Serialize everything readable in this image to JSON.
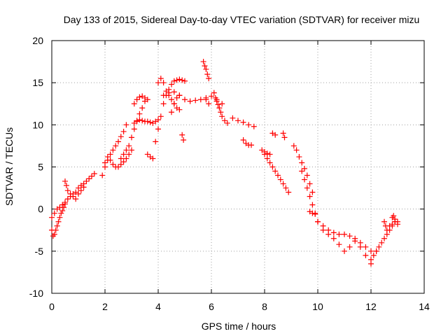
{
  "chart_data": {
    "type": "scatter",
    "title": "Day 133 of 2015, Sidereal Day-to-day VTEC variation (SDTVAR) for receiver mizu",
    "xlabel": "GPS time / hours",
    "ylabel": "SDTVAR / TECUs",
    "xlim": [
      0,
      14
    ],
    "ylim": [
      -10,
      20
    ],
    "xticks": [
      0,
      2,
      4,
      6,
      8,
      10,
      12,
      14
    ],
    "yticks": [
      -10,
      -5,
      0,
      5,
      10,
      15,
      20
    ],
    "xtick_labels": [
      "0",
      "2",
      "4",
      "6",
      "8",
      "10",
      "12",
      "14"
    ],
    "ytick_labels": [
      "-10",
      "-5",
      "0",
      "5",
      "10",
      "15",
      "20"
    ],
    "grid": true,
    "marker": "+",
    "color": "#ff0000",
    "series": [
      {
        "name": "s1",
        "x": [
          0.0,
          0.1,
          0.2,
          0.3,
          0.4,
          0.5,
          0.6,
          0.7,
          0.8,
          0.9,
          1.0,
          1.1,
          1.2,
          1.3,
          1.4,
          1.5,
          1.6
        ],
        "y": [
          -1.0,
          -0.5,
          0.0,
          0.2,
          0.5,
          0.8,
          1.2,
          1.5,
          1.8,
          2.0,
          2.5,
          2.8,
          3.0,
          3.3,
          3.6,
          3.9,
          4.2
        ]
      },
      {
        "name": "s2",
        "x": [
          0.0,
          0.05,
          0.1,
          0.15,
          0.2,
          0.25,
          0.3,
          0.35,
          0.4,
          0.45,
          0.5
        ],
        "y": [
          -2.5,
          -3.2,
          -3.0,
          -2.5,
          -2.0,
          -1.5,
          -1.0,
          -0.5,
          -0.2,
          0.2,
          0.6
        ]
      },
      {
        "name": "s3",
        "x": [
          0.5,
          0.55,
          0.6,
          0.7,
          0.8,
          0.9,
          1.0,
          1.1,
          1.2
        ],
        "y": [
          3.3,
          2.8,
          2.2,
          1.8,
          1.5,
          1.2,
          1.8,
          2.2,
          2.6
        ]
      },
      {
        "name": "s4",
        "x": [
          1.9,
          2.0,
          2.1,
          2.2,
          2.3,
          2.4,
          2.5,
          2.6,
          2.7,
          2.8
        ],
        "y": [
          4.0,
          5.0,
          5.8,
          6.5,
          7.0,
          7.5,
          8.0,
          8.6,
          9.2,
          10.0
        ]
      },
      {
        "name": "s5",
        "x": [
          2.0,
          2.1,
          2.2,
          2.3,
          2.4,
          2.5,
          2.6,
          2.7,
          2.8,
          2.9,
          3.0
        ],
        "y": [
          5.5,
          6.2,
          5.8,
          5.3,
          5.0,
          5.0,
          5.3,
          5.6,
          6.0,
          6.5,
          7.0
        ]
      },
      {
        "name": "s6",
        "x": [
          2.6,
          2.7,
          2.8,
          2.9,
          3.0,
          3.1,
          3.2,
          3.3,
          3.4,
          3.5
        ],
        "y": [
          6.0,
          6.5,
          7.0,
          7.5,
          8.5,
          9.5,
          10.5,
          11.3,
          12.0,
          12.8
        ]
      },
      {
        "name": "s7",
        "x": [
          3.1,
          3.2,
          3.3,
          3.4,
          3.5,
          3.6,
          3.7,
          3.8,
          3.9,
          4.0
        ],
        "y": [
          10.2,
          10.4,
          10.6,
          10.5,
          10.4,
          10.4,
          10.3,
          10.2,
          10.4,
          10.6
        ]
      },
      {
        "name": "s8",
        "x": [
          3.1,
          3.2,
          3.3,
          3.4,
          3.5,
          3.6
        ],
        "y": [
          12.5,
          13.0,
          13.3,
          13.4,
          13.2,
          13.0
        ]
      },
      {
        "name": "s9",
        "x": [
          3.6,
          3.7,
          3.8
        ],
        "y": [
          6.5,
          6.2,
          6.0
        ]
      },
      {
        "name": "s10",
        "x": [
          3.9,
          4.0,
          4.1,
          4.2,
          4.3,
          4.4,
          4.5,
          4.6,
          4.7,
          4.8,
          4.9,
          5.0
        ],
        "y": [
          8.0,
          9.5,
          11.0,
          12.5,
          13.5,
          14.2,
          14.8,
          15.2,
          15.3,
          15.4,
          15.3,
          15.2
        ]
      },
      {
        "name": "s11",
        "x": [
          4.0,
          4.1,
          4.2,
          4.3,
          4.4,
          4.5,
          4.6,
          4.7,
          4.8
        ],
        "y": [
          15.0,
          15.5,
          15.0,
          14.0,
          13.5,
          13.0,
          12.5,
          12.0,
          11.8
        ]
      },
      {
        "name": "s12",
        "x": [
          4.2,
          4.4,
          4.6,
          4.8,
          5.0,
          5.2,
          5.4,
          5.6,
          5.8,
          6.0,
          6.2,
          6.4
        ],
        "y": [
          13.5,
          13.8,
          13.9,
          13.5,
          13.0,
          12.8,
          12.9,
          13.0,
          13.2,
          13.4,
          13.0,
          12.5
        ]
      },
      {
        "name": "s13",
        "x": [
          4.5,
          4.6,
          4.7,
          4.8
        ],
        "y": [
          11.5,
          12.5,
          13.2,
          13.5
        ]
      },
      {
        "name": "s14",
        "x": [
          4.9,
          4.95
        ],
        "y": [
          8.8,
          8.2
        ]
      },
      {
        "name": "s15",
        "x": [
          5.7,
          5.75,
          5.8,
          5.85,
          5.9
        ],
        "y": [
          17.5,
          17.0,
          16.6,
          16.0,
          15.5
        ]
      },
      {
        "name": "s16",
        "x": [
          5.8,
          5.9
        ],
        "y": [
          13.0,
          12.5
        ]
      },
      {
        "name": "s17",
        "x": [
          6.1,
          6.15,
          6.2,
          6.25,
          6.3,
          6.35,
          6.4,
          6.5,
          6.6
        ],
        "y": [
          13.8,
          13.2,
          12.8,
          12.4,
          12.0,
          11.5,
          11.0,
          10.5,
          10.2
        ]
      },
      {
        "name": "s18",
        "x": [
          6.8,
          7.0,
          7.2,
          7.4,
          7.6
        ],
        "y": [
          10.8,
          10.5,
          10.3,
          10.0,
          9.8
        ]
      },
      {
        "name": "s19",
        "x": [
          7.2,
          7.3,
          7.4,
          7.5
        ],
        "y": [
          8.2,
          7.8,
          7.6,
          7.6
        ]
      },
      {
        "name": "s20",
        "x": [
          7.9,
          8.0,
          8.1,
          8.2,
          8.3,
          8.4,
          8.5,
          8.6,
          8.7,
          8.8,
          8.9
        ],
        "y": [
          7.0,
          6.5,
          6.0,
          5.5,
          5.0,
          4.5,
          4.0,
          3.5,
          3.0,
          2.5,
          2.0
        ]
      },
      {
        "name": "s21",
        "x": [
          8.0,
          8.1,
          8.2
        ],
        "y": [
          6.8,
          6.6,
          6.5
        ]
      },
      {
        "name": "s22",
        "x": [
          8.3,
          8.4
        ],
        "y": [
          9.0,
          8.8
        ]
      },
      {
        "name": "s23",
        "x": [
          8.7,
          8.75
        ],
        "y": [
          9.0,
          8.5
        ]
      },
      {
        "name": "s24",
        "x": [
          9.1,
          9.2,
          9.3,
          9.4,
          9.5,
          9.6,
          9.7,
          9.8
        ],
        "y": [
          7.5,
          7.0,
          6.2,
          5.5,
          4.8,
          4.0,
          3.0,
          2.0
        ]
      },
      {
        "name": "s25",
        "x": [
          9.4,
          9.5,
          9.6,
          9.7,
          9.8,
          9.9,
          10.0
        ],
        "y": [
          4.5,
          3.5,
          2.5,
          1.5,
          0.5,
          -0.5,
          -1.5
        ]
      },
      {
        "name": "s26",
        "x": [
          9.7,
          9.8,
          9.9
        ],
        "y": [
          -0.3,
          -0.5,
          -0.6
        ]
      },
      {
        "name": "s27",
        "x": [
          10.0,
          10.2,
          10.4,
          10.6,
          10.8,
          11.0,
          11.2,
          11.4,
          11.6,
          11.8,
          12.0,
          12.2
        ],
        "y": [
          -1.5,
          -2.0,
          -2.5,
          -2.8,
          -3.0,
          -3.0,
          -3.2,
          -3.5,
          -4.0,
          -4.5,
          -5.0,
          -5.0
        ]
      },
      {
        "name": "s28",
        "x": [
          10.2,
          10.4,
          10.6,
          10.8,
          11.0,
          11.2,
          11.4,
          11.6,
          11.8,
          12.0
        ],
        "y": [
          -2.5,
          -3.0,
          -3.5,
          -4.2,
          -5.0,
          -4.5,
          -3.8,
          -4.5,
          -5.5,
          -6.0
        ]
      },
      {
        "name": "s29",
        "x": [
          12.0,
          12.1,
          12.2,
          12.3,
          12.4,
          12.5,
          12.6,
          12.7,
          12.8,
          12.9,
          13.0
        ],
        "y": [
          -6.5,
          -5.5,
          -5.0,
          -4.5,
          -4.0,
          -3.5,
          -3.0,
          -2.5,
          -2.0,
          -1.5,
          -1.5
        ]
      },
      {
        "name": "s30",
        "x": [
          12.5,
          12.55,
          12.6,
          12.7,
          12.8,
          12.9
        ],
        "y": [
          -1.5,
          -2.0,
          -2.5,
          -2.0,
          -1.8,
          -1.5
        ]
      },
      {
        "name": "s31",
        "x": [
          12.8,
          12.85,
          12.9,
          13.0
        ],
        "y": [
          -1.0,
          -0.8,
          -1.2,
          -1.8
        ]
      }
    ]
  }
}
